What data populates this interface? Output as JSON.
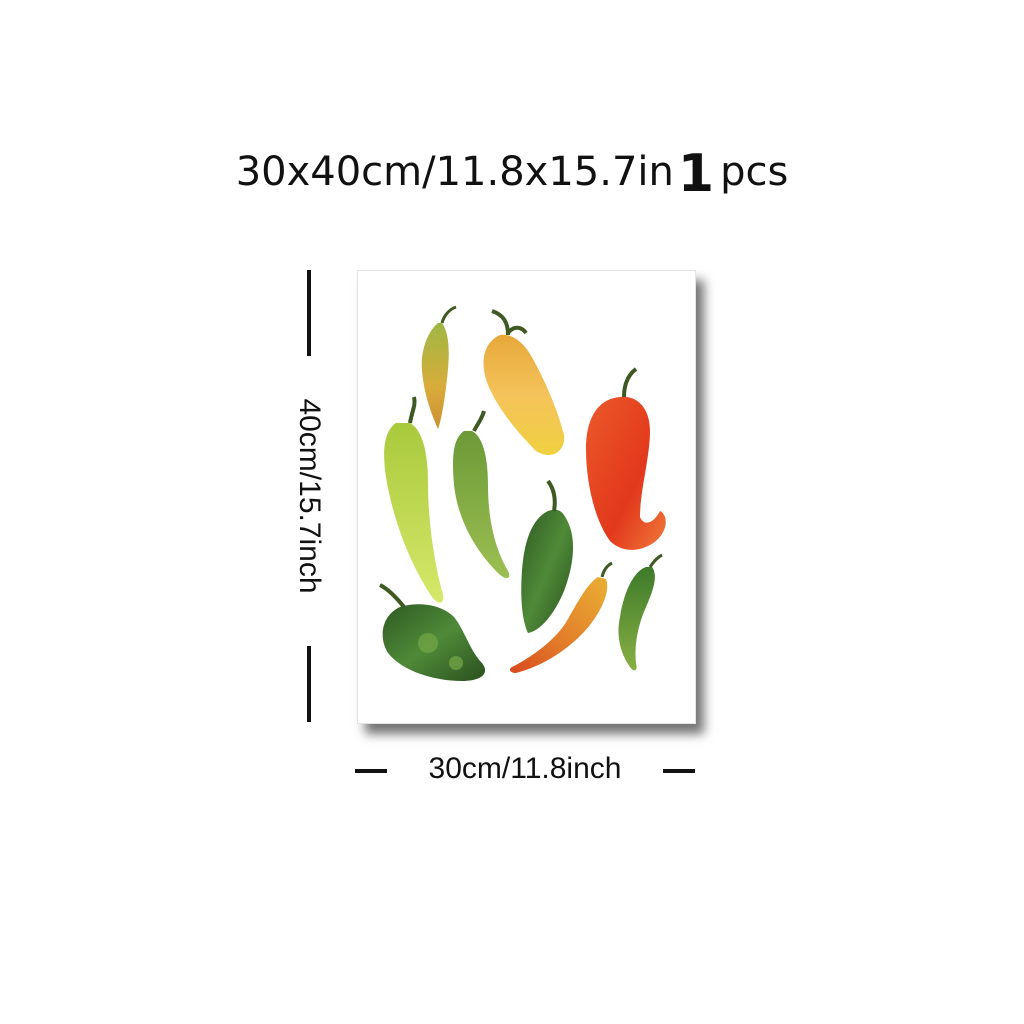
{
  "title": {
    "size_text": "30x40cm/11.8x15.7in",
    "quantity_number": "1",
    "quantity_unit": "pcs"
  },
  "dimensions": {
    "height_label": "40cm/15.7inch",
    "width_label": "30cm/11.8inch"
  },
  "artwork": {
    "subject_icon": "chili-peppers-watercolor-icon",
    "colors": {
      "red": "#e23b1e",
      "orange": "#f0a030",
      "yellow": "#f3d84a",
      "light_green": "#b8d64a",
      "mid_green": "#6f9a3a",
      "dark_green": "#2f5a23",
      "stem": "#3e5a22"
    }
  }
}
